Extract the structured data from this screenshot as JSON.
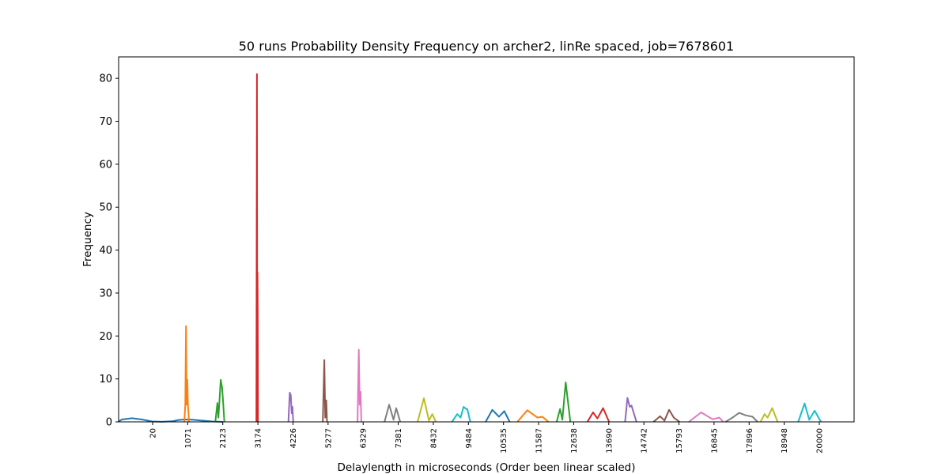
{
  "chart_data": {
    "type": "line",
    "title": "50 runs Probability Density Frequency on archer2, linRe spaced, job=7678601",
    "xlabel": "Delaylength in microseconds (Order been linear scaled)",
    "ylabel": "Frequency",
    "x_tick_labels": [
      "20",
      "1071",
      "2123",
      "3174",
      "4226",
      "5277",
      "6329",
      "7381",
      "8432",
      "9484",
      "10535",
      "11587",
      "12638",
      "13690",
      "14742",
      "15793",
      "16845",
      "17896",
      "18948",
      "20000"
    ],
    "y_ticks": [
      0,
      10,
      20,
      30,
      40,
      50,
      60,
      70,
      80
    ],
    "ylim": [
      0,
      85
    ],
    "grid": false,
    "legend": "none",
    "colors": [
      "#1f77b4",
      "#ff7f0e",
      "#2ca02c",
      "#d62728",
      "#9467bd",
      "#8c564b",
      "#e377c2",
      "#7f7f7f",
      "#bcbd22",
      "#17becf"
    ],
    "series": [
      {
        "values": [
          [
            -1000,
            0.1
          ],
          [
            -900,
            0.55
          ],
          [
            -600,
            0.85
          ],
          [
            -300,
            0.55
          ],
          [
            0,
            0.1
          ],
          [
            300,
            0.02
          ],
          [
            600,
            0.12
          ],
          [
            800,
            0.45
          ],
          [
            1000,
            0.55
          ],
          [
            1200,
            0.5
          ],
          [
            1500,
            0.3
          ],
          [
            1800,
            0.1
          ],
          [
            2123,
            0.0
          ]
        ]
      },
      {
        "values": [
          [
            970,
            0.0
          ],
          [
            1000,
            4.0
          ],
          [
            1020,
            22.3
          ],
          [
            1040,
            4.0
          ],
          [
            1060,
            9.8
          ],
          [
            1075,
            4.5
          ],
          [
            1110,
            0.0
          ]
        ]
      },
      {
        "values": [
          [
            1900,
            0.0
          ],
          [
            1960,
            4.4
          ],
          [
            1990,
            1.0
          ],
          [
            2020,
            4.5
          ],
          [
            2060,
            9.8
          ],
          [
            2100,
            8.0
          ],
          [
            2130,
            5.0
          ],
          [
            2170,
            0.0
          ]
        ]
      },
      {
        "values": [
          [
            3130,
            0.0
          ],
          [
            3145,
            81.0
          ],
          [
            3155,
            5.0
          ],
          [
            3162,
            34.8
          ],
          [
            3170,
            25.0
          ],
          [
            3178,
            0.0
          ]
        ]
      },
      {
        "values": [
          [
            4090,
            0.0
          ],
          [
            4130,
            6.8
          ],
          [
            4160,
            6.2
          ],
          [
            4190,
            2.0
          ],
          [
            4210,
            3.5
          ],
          [
            4235,
            0.0
          ]
        ]
      },
      {
        "values": [
          [
            5120,
            0.0
          ],
          [
            5165,
            14.4
          ],
          [
            5195,
            1.0
          ],
          [
            5225,
            5.0
          ],
          [
            5245,
            0.0
          ]
        ]
      },
      {
        "values": [
          [
            6160,
            0.0
          ],
          [
            6200,
            16.8
          ],
          [
            6225,
            4.0
          ],
          [
            6250,
            7.0
          ],
          [
            6275,
            0.0
          ]
        ]
      },
      {
        "values": [
          [
            6970,
            0.0
          ],
          [
            7110,
            4.0
          ],
          [
            7240,
            0.5
          ],
          [
            7320,
            3.2
          ],
          [
            7440,
            0.0
          ]
        ]
      },
      {
        "values": [
          [
            7960,
            0.0
          ],
          [
            8150,
            5.5
          ],
          [
            8300,
            0.3
          ],
          [
            8400,
            1.8
          ],
          [
            8510,
            0.0
          ]
        ]
      },
      {
        "values": [
          [
            8990,
            0.0
          ],
          [
            9150,
            1.8
          ],
          [
            9250,
            1.0
          ],
          [
            9340,
            3.5
          ],
          [
            9420,
            3.0
          ],
          [
            9450,
            3.0
          ],
          [
            9540,
            0.0
          ]
        ]
      },
      {
        "values": [
          [
            10000,
            0.0
          ],
          [
            10200,
            2.8
          ],
          [
            10400,
            1.2
          ],
          [
            10560,
            2.5
          ],
          [
            10720,
            0.0
          ]
        ]
      },
      {
        "values": [
          [
            10950,
            0.0
          ],
          [
            11250,
            2.7
          ],
          [
            11550,
            1.0
          ],
          [
            11700,
            1.2
          ],
          [
            11880,
            0.0
          ]
        ]
      },
      {
        "values": [
          [
            12130,
            0.0
          ],
          [
            12230,
            3.0
          ],
          [
            12300,
            0.5
          ],
          [
            12400,
            9.2
          ],
          [
            12540,
            0.0
          ]
        ]
      },
      {
        "values": [
          [
            13050,
            0.0
          ],
          [
            13220,
            2.2
          ],
          [
            13350,
            0.8
          ],
          [
            13520,
            3.2
          ],
          [
            13700,
            0.0
          ]
        ]
      },
      {
        "values": [
          [
            14180,
            0.0
          ],
          [
            14250,
            5.6
          ],
          [
            14320,
            3.5
          ],
          [
            14370,
            3.8
          ],
          [
            14520,
            0.0
          ]
        ]
      },
      {
        "values": [
          [
            15030,
            0.0
          ],
          [
            15230,
            1.3
          ],
          [
            15360,
            0.3
          ],
          [
            15500,
            2.8
          ],
          [
            15640,
            1.0
          ],
          [
            15810,
            0.0
          ]
        ]
      },
      {
        "values": [
          [
            16090,
            0.0
          ],
          [
            16460,
            2.2
          ],
          [
            16800,
            0.6
          ],
          [
            17000,
            1.0
          ],
          [
            17120,
            0.0
          ]
        ]
      },
      {
        "values": [
          [
            17190,
            0.0
          ],
          [
            17400,
            1.0
          ],
          [
            17600,
            2.1
          ],
          [
            17800,
            1.5
          ],
          [
            18000,
            1.2
          ],
          [
            18150,
            0.0
          ]
        ]
      },
      {
        "values": [
          [
            18240,
            0.0
          ],
          [
            18360,
            1.8
          ],
          [
            18450,
            1.0
          ],
          [
            18590,
            3.2
          ],
          [
            18750,
            0.0
          ]
        ]
      },
      {
        "values": [
          [
            19370,
            0.0
          ],
          [
            19560,
            4.3
          ],
          [
            19700,
            0.5
          ],
          [
            19860,
            2.6
          ],
          [
            20050,
            0.0
          ]
        ]
      }
    ]
  }
}
